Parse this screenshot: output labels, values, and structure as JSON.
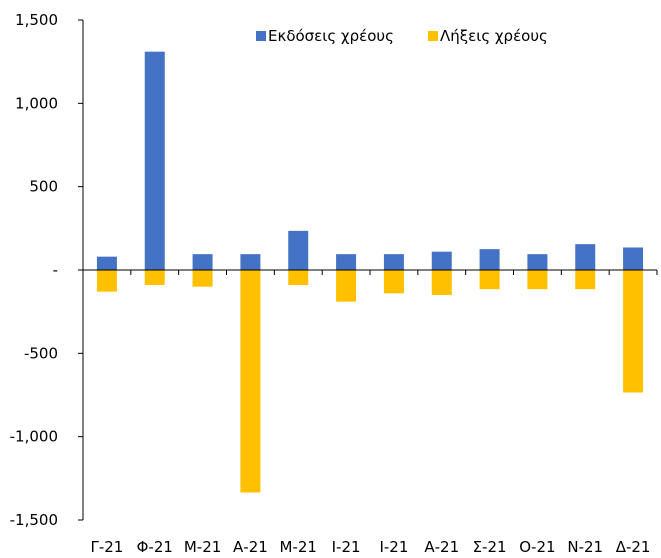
{
  "chart_data": {
    "type": "bar",
    "categories": [
      "Γ-21",
      "Φ-21",
      "Μ-21",
      "Α-21",
      "Μ-21",
      "Ι-21",
      "Ι-21",
      "Α-21",
      "Σ-21",
      "Ο-21",
      "Ν-21",
      "Δ-21"
    ],
    "series": [
      {
        "name": "Εκδόσεις χρέους",
        "color": "#4472C4",
        "values": [
          80,
          1310,
          95,
          95,
          235,
          95,
          95,
          110,
          125,
          95,
          155,
          135
        ]
      },
      {
        "name": "Λήξεις χρέους",
        "color": "#FFC000",
        "values": [
          -130,
          -90,
          -100,
          -1335,
          -90,
          -190,
          -140,
          -150,
          -115,
          -115,
          -115,
          -735
        ]
      }
    ],
    "ylim": [
      -1500,
      1500
    ],
    "yticks": [
      1500,
      1000,
      500,
      0,
      -500,
      -1000,
      -1500
    ],
    "ytick_labels": [
      "1,500",
      "1,000",
      "500",
      "-",
      "-500",
      "-1,000",
      "-1,500"
    ],
    "grid": false,
    "legend": "top-center"
  }
}
